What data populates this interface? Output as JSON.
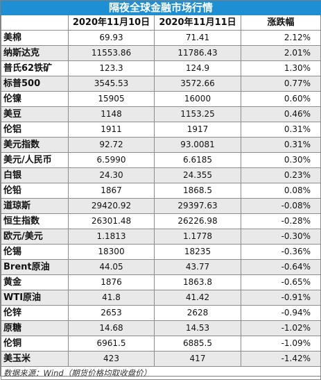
{
  "title": "隔夜全球金融市场行情",
  "headers": [
    "",
    "2020年11月10日",
    "2020年11月11日",
    "涨跌幅"
  ],
  "rows": [
    {
      "name": "美棉",
      "d1": "69.93",
      "d2": "71.41",
      "chg": "2.12%"
    },
    {
      "name": "纳斯达克",
      "d1": "11553.86",
      "d2": "11786.43",
      "chg": "2.01%"
    },
    {
      "name": "普氏62铁矿",
      "d1": "123.3",
      "d2": "124.9",
      "chg": "1.30%"
    },
    {
      "name": "标普500",
      "d1": "3545.53",
      "d2": "3572.66",
      "chg": "0.77%"
    },
    {
      "name": "伦镍",
      "d1": "15905",
      "d2": "16000",
      "chg": "0.60%"
    },
    {
      "name": "美豆",
      "d1": "1148",
      "d2": "1153.25",
      "chg": "0.46%"
    },
    {
      "name": "伦铝",
      "d1": "1911",
      "d2": "1917",
      "chg": "0.31%"
    },
    {
      "name": "美元指数",
      "d1": "92.72",
      "d2": "93.0081",
      "chg": "0.31%"
    },
    {
      "name": "美元/人民币",
      "d1": "6.5990",
      "d2": "6.6185",
      "chg": "0.30%"
    },
    {
      "name": "白银",
      "d1": "24.30",
      "d2": "24.355",
      "chg": "0.23%"
    },
    {
      "name": "伦铅",
      "d1": "1867",
      "d2": "1868.5",
      "chg": "0.08%"
    },
    {
      "name": "道琼斯",
      "d1": "29420.92",
      "d2": "29397.63",
      "chg": "-0.08%"
    },
    {
      "name": "恒生指数",
      "d1": "26301.48",
      "d2": "26226.98",
      "chg": "-0.28%"
    },
    {
      "name": "欧元/美元",
      "d1": "1.1813",
      "d2": "1.1778",
      "chg": "-0.30%"
    },
    {
      "name": "伦锡",
      "d1": "18300",
      "d2": "18235",
      "chg": "-0.36%"
    },
    {
      "name": "Brent原油",
      "d1": "44.05",
      "d2": "43.77",
      "chg": "-0.64%"
    },
    {
      "name": "黄金",
      "d1": "1876",
      "d2": "1863.8",
      "chg": "-0.65%"
    },
    {
      "name": "WTI原油",
      "d1": "41.8",
      "d2": "41.42",
      "chg": "-0.91%"
    },
    {
      "name": "伦锌",
      "d1": "2653",
      "d2": "2628",
      "chg": "-0.94%"
    },
    {
      "name": "原糖",
      "d1": "14.68",
      "d2": "14.53",
      "chg": "-1.02%"
    },
    {
      "name": "伦铜",
      "d1": "6961.5",
      "d2": "6885.5",
      "chg": "-1.09%"
    },
    {
      "name": "美玉米",
      "d1": "423",
      "d2": "417",
      "chg": "-1.42%"
    }
  ],
  "footer": "数据来源：Wind（期货价格均取收盘价）",
  "colors": {
    "title_bg": "#1f8fd4",
    "alt_row_bg": "#e9e9e9"
  }
}
